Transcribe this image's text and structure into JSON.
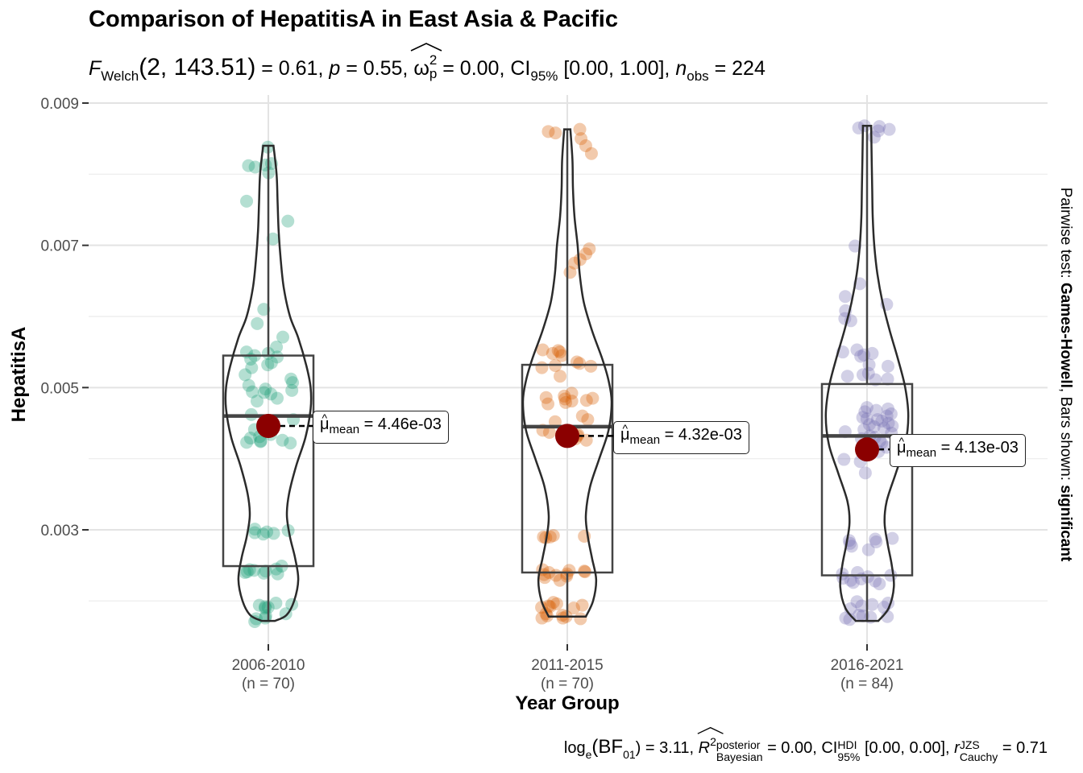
{
  "title": "Comparison of HepatitisA in East Asia & Pacific",
  "subtitle": {
    "F": "F",
    "F_sub": "Welch",
    "args": "(2, 143.51)",
    "fval": " = 0.61, ",
    "p": "p",
    "pval": " = 0.55, ",
    "omega": "ω",
    "omega_sup": "2",
    "omega_sub": "p",
    "omega_val": " = 0.00, CI",
    "ci_sub": "95%",
    "ci_val": " [0.00, 1.00], ",
    "n": "n",
    "n_sub": "obs",
    "n_val": " = 224"
  },
  "caption": {
    "log": "log",
    "log_sub": "e",
    "bf": "(BF",
    "bf_sub": "01",
    "bf_val": ") = 3.11, ",
    "r": "R",
    "r_sup": "2",
    "r_stack_top": "posterior",
    "r_stack_bot": "Bayesian",
    "r_val": " = 0.00, CI",
    "hdi_top": "HDI",
    "hdi_bot": "95%",
    "hdi_val": " [0.00, 0.00], ",
    "rc": "r",
    "rc_top": "JZS",
    "rc_bot": "Cauchy",
    "rc_val": " = 0.71"
  },
  "right_side": {
    "prefix": "Pairwise test: ",
    "test": "Games-Howell",
    "middle": ", Bars shown: ",
    "shown": "significant"
  },
  "mean_labels": [
    {
      "mu": "μ",
      "sub": "mean",
      "val": " = 4.46e-03"
    },
    {
      "mu": "μ",
      "sub": "mean",
      "val": " = 4.32e-03"
    },
    {
      "mu": "μ",
      "sub": "mean",
      "val": " = 4.13e-03"
    }
  ],
  "chart_data": {
    "type": "violin-box-scatter",
    "xlabel": "Year Group",
    "ylabel": "HepatitisA",
    "ylim": [
      0.0013,
      0.009
    ],
    "yticks": [
      0.003,
      0.005,
      0.007,
      0.009
    ],
    "ytick_labels": [
      "0.003",
      "0.005",
      "0.007",
      "0.009"
    ],
    "grid": true,
    "categories": [
      "2006-2010",
      "2011-2015",
      "2016-2021"
    ],
    "n_labels": [
      "(n = 70)",
      "(n = 70)",
      "(n = 84)"
    ],
    "colors": [
      "#1b9e77",
      "#d95f02",
      "#7570b3"
    ],
    "mean_color": "#8b0000",
    "groups": [
      {
        "name": "2006-2010",
        "n": 70,
        "mean": 0.00446,
        "box": {
          "q1": 0.00249,
          "median": 0.0046,
          "q3": 0.00545,
          "whisker_low": 0.00172,
          "whisker_high": 0.0084
        },
        "violin_density": [
          [
            0.00172,
            0.13
          ],
          [
            0.0018,
            0.35
          ],
          [
            0.002,
            0.5
          ],
          [
            0.0023,
            0.58
          ],
          [
            0.0026,
            0.52
          ],
          [
            0.0029,
            0.42
          ],
          [
            0.0032,
            0.36
          ],
          [
            0.0035,
            0.4
          ],
          [
            0.0039,
            0.54
          ],
          [
            0.0043,
            0.72
          ],
          [
            0.0047,
            0.82
          ],
          [
            0.005,
            0.82
          ],
          [
            0.0053,
            0.74
          ],
          [
            0.0057,
            0.58
          ],
          [
            0.006,
            0.42
          ],
          [
            0.0064,
            0.3
          ],
          [
            0.0068,
            0.24
          ],
          [
            0.0072,
            0.2
          ],
          [
            0.0076,
            0.18
          ],
          [
            0.008,
            0.16
          ],
          [
            0.0084,
            0.1
          ]
        ],
        "points": [
          0.00838,
          0.00815,
          0.00812,
          0.0081,
          0.00813,
          0.00802,
          0.00762,
          0.00734,
          0.00709,
          0.0061,
          0.0059,
          0.00571,
          0.00557,
          0.0055,
          0.00548,
          0.00545,
          0.00543,
          0.0054,
          0.00535,
          0.00532,
          0.00528,
          0.00518,
          0.00512,
          0.00507,
          0.00503,
          0.00498,
          0.00496,
          0.00494,
          0.00493,
          0.00491,
          0.00485,
          0.00481,
          0.00462,
          0.00455,
          0.00445,
          0.00441,
          0.00434,
          0.00431,
          0.00429,
          0.00426,
          0.00425,
          0.00424,
          0.00423,
          0.00422,
          0.00301,
          0.00299,
          0.00297,
          0.00296,
          0.00295,
          0.00294,
          0.00249,
          0.00245,
          0.00244,
          0.00243,
          0.00242,
          0.00241,
          0.0024,
          0.00239,
          0.00238,
          0.00197,
          0.00195,
          0.00194,
          0.00192,
          0.00191,
          0.0019,
          0.00182,
          0.00179,
          0.00176,
          0.00175,
          0.00171
        ]
      },
      {
        "name": "2011-2015",
        "n": 70,
        "mean": 0.00432,
        "box": {
          "q1": 0.0024,
          "median": 0.00445,
          "q3": 0.00532,
          "whisker_low": 0.00178,
          "whisker_high": 0.00863
        },
        "violin_density": [
          [
            0.00178,
            0.36
          ],
          [
            0.002,
            0.5
          ],
          [
            0.0023,
            0.56
          ],
          [
            0.0026,
            0.48
          ],
          [
            0.0029,
            0.4
          ],
          [
            0.0032,
            0.36
          ],
          [
            0.0036,
            0.44
          ],
          [
            0.004,
            0.62
          ],
          [
            0.0044,
            0.8
          ],
          [
            0.0048,
            0.86
          ],
          [
            0.0051,
            0.8
          ],
          [
            0.0054,
            0.68
          ],
          [
            0.0058,
            0.48
          ],
          [
            0.0062,
            0.32
          ],
          [
            0.0066,
            0.24
          ],
          [
            0.007,
            0.2
          ],
          [
            0.0074,
            0.14
          ],
          [
            0.0078,
            0.11
          ],
          [
            0.0082,
            0.1
          ],
          [
            0.00863,
            0.06
          ]
        ],
        "points": [
          0.00863,
          0.0086,
          0.00858,
          0.0085,
          0.0084,
          0.00829,
          0.00695,
          0.00688,
          0.0068,
          0.00675,
          0.00662,
          0.00553,
          0.00552,
          0.0055,
          0.00548,
          0.00545,
          0.00536,
          0.00534,
          0.00531,
          0.0053,
          0.00528,
          0.00516,
          0.00492,
          0.00488,
          0.00486,
          0.00485,
          0.00484,
          0.00482,
          0.00481,
          0.00479,
          0.00477,
          0.0046,
          0.00455,
          0.00452,
          0.0044,
          0.00437,
          0.00434,
          0.00432,
          0.00428,
          0.00426,
          0.00292,
          0.00291,
          0.0029,
          0.0029,
          0.00289,
          0.00244,
          0.00243,
          0.00242,
          0.00241,
          0.0024,
          0.00238,
          0.00237,
          0.00236,
          0.00235,
          0.00233,
          0.00229,
          0.00198,
          0.00196,
          0.00194,
          0.00193,
          0.00192,
          0.00191,
          0.0019,
          0.00182,
          0.0018,
          0.00179,
          0.00178,
          0.00176,
          0.00176,
          0.00175
        ]
      },
      {
        "name": "2016-2021",
        "n": 84,
        "mean": 0.00413,
        "box": {
          "q1": 0.00236,
          "median": 0.00432,
          "q3": 0.00505,
          "whisker_low": 0.00172,
          "whisker_high": 0.00868
        },
        "violin_density": [
          [
            0.00172,
            0.22
          ],
          [
            0.0019,
            0.42
          ],
          [
            0.0022,
            0.52
          ],
          [
            0.0025,
            0.48
          ],
          [
            0.0028,
            0.4
          ],
          [
            0.0031,
            0.34
          ],
          [
            0.0034,
            0.38
          ],
          [
            0.0038,
            0.56
          ],
          [
            0.0042,
            0.74
          ],
          [
            0.0046,
            0.8
          ],
          [
            0.005,
            0.74
          ],
          [
            0.0054,
            0.6
          ],
          [
            0.0058,
            0.44
          ],
          [
            0.0062,
            0.3
          ],
          [
            0.0066,
            0.2
          ],
          [
            0.007,
            0.14
          ],
          [
            0.0074,
            0.11
          ],
          [
            0.0078,
            0.1
          ],
          [
            0.0082,
            0.09
          ],
          [
            0.00868,
            0.08
          ]
        ],
        "points": [
          0.00868,
          0.00867,
          0.00865,
          0.00863,
          0.00861,
          0.00852,
          0.00699,
          0.00646,
          0.00628,
          0.00617,
          0.00608,
          0.00597,
          0.00594,
          0.00553,
          0.0055,
          0.00548,
          0.00546,
          0.00544,
          0.00532,
          0.0053,
          0.0052,
          0.00518,
          0.00516,
          0.00512,
          0.00511,
          0.00472,
          0.0047,
          0.00468,
          0.00466,
          0.00463,
          0.0046,
          0.00458,
          0.00456,
          0.00455,
          0.00453,
          0.0045,
          0.00448,
          0.00446,
          0.00445,
          0.00443,
          0.00441,
          0.00438,
          0.00436,
          0.00432,
          0.0043,
          0.00428,
          0.00425,
          0.00422,
          0.0042,
          0.00418,
          0.00416,
          0.0041,
          0.00399,
          0.00396,
          0.0038,
          0.00288,
          0.00287,
          0.00285,
          0.00283,
          0.00281,
          0.00277,
          0.00272,
          0.0024,
          0.00238,
          0.00236,
          0.00234,
          0.00232,
          0.00231,
          0.00229,
          0.00228,
          0.00226,
          0.00224,
          0.00199,
          0.00197,
          0.00195,
          0.00193,
          0.00191,
          0.00189,
          0.0018,
          0.00179,
          0.00178,
          0.00177,
          0.00176,
          0.00174
        ]
      }
    ]
  }
}
